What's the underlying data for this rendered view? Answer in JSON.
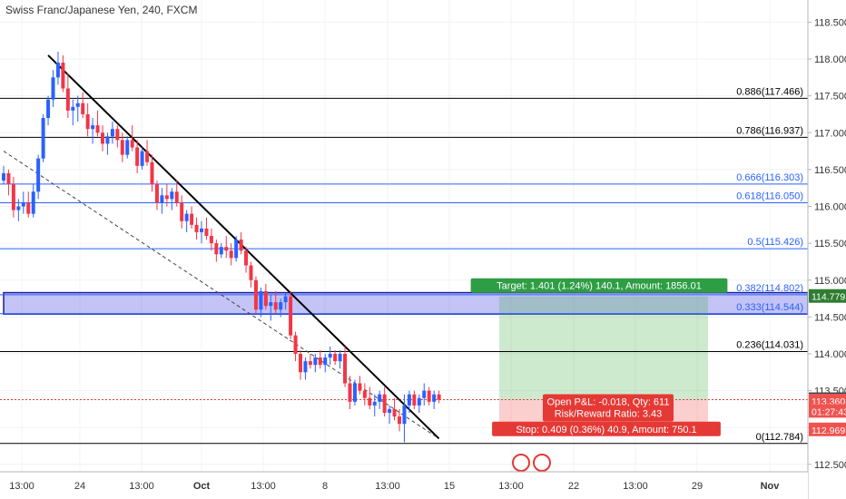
{
  "chart_data": {
    "type": "candlestick",
    "title": "Swiss Franc/Japanese Yen, 240, FXCM",
    "y_axis": {
      "range": [
        112.4,
        118.8
      ],
      "ticks": [
        "118.500",
        "118.000",
        "117.500",
        "117.000",
        "116.500",
        "116.000",
        "115.500",
        "115.000",
        "114.500",
        "114.000",
        "113.500",
        "113.000",
        "112.500"
      ]
    },
    "x_axis": {
      "ticks": [
        "13:00",
        "24",
        "13:00",
        "Oct",
        "13:00",
        "8",
        "13:00",
        "15",
        "13:00",
        "22",
        "13:00",
        "29",
        "Nov"
      ]
    },
    "fib_levels": [
      {
        "label": "0.886(117.466)",
        "value": 117.466,
        "color": "#000000"
      },
      {
        "label": "0.786(116.937)",
        "value": 116.937,
        "color": "#000000"
      },
      {
        "label": "0.666(116.303)",
        "value": 116.303,
        "color": "#2962ff"
      },
      {
        "label": "0.618(116.050)",
        "value": 116.05,
        "color": "#2962ff"
      },
      {
        "label": "0.5(115.426)",
        "value": 115.426,
        "color": "#2962ff"
      },
      {
        "label": "0.382(114.802)",
        "value": 114.802,
        "color": "#2962ff"
      },
      {
        "label": "0.333(114.544)",
        "value": 114.544,
        "color": "#2962ff"
      },
      {
        "label": "0.236(114.031)",
        "value": 114.031,
        "color": "#000000"
      },
      {
        "label": "0(112.784)",
        "value": 112.784,
        "color": "#000000"
      }
    ],
    "price_badges": [
      {
        "text": "114.779",
        "value": 114.779,
        "color": "#2e7d32"
      },
      {
        "text": "113.378",
        "value": 113.378,
        "color": "#37474f"
      },
      {
        "text": "113.360",
        "value": 113.36,
        "color": "#ef5350"
      },
      {
        "text": "01:27:43",
        "value": 113.22,
        "color": "#ef5350"
      },
      {
        "text": "112.969",
        "value": 112.969,
        "color": "#ef5350"
      }
    ],
    "position_tool": {
      "target_label": "Target: 1.401 (1.24%) 140.1, Amount: 1856.01",
      "open_label": "Open P&L: -0.018, Qty: 611",
      "rr_label": "Risk/Reward Ratio: 3.43",
      "stop_label": "Stop: 0.409 (0.36%) 40.9, Amount: 750.1",
      "entry": 113.378,
      "target": 114.779,
      "stop": 112.969
    },
    "trendlines": [
      {
        "style": "solid",
        "from": {
          "bar": 9,
          "price": 118.05
        },
        "to": {
          "bar": 88,
          "price": 112.85
        }
      },
      {
        "style": "dashed",
        "from": {
          "bar": 0,
          "price": 116.75
        },
        "to": {
          "bar": 88,
          "price": 112.85
        }
      }
    ],
    "supply_zone": {
      "top": 114.83,
      "bottom": 114.54
    },
    "current_price": 113.378,
    "bar_count": 100,
    "candles": [
      [
        116.35,
        116.55,
        116.3,
        116.45
      ],
      [
        116.45,
        116.5,
        116.15,
        116.3
      ],
      [
        116.3,
        116.4,
        115.85,
        115.95
      ],
      [
        115.95,
        116.1,
        115.8,
        116.0
      ],
      [
        116.0,
        116.2,
        115.9,
        116.05
      ],
      [
        116.05,
        116.2,
        115.85,
        115.9
      ],
      [
        115.9,
        116.3,
        115.85,
        116.2
      ],
      [
        116.2,
        116.7,
        116.1,
        116.65
      ],
      [
        116.65,
        117.25,
        116.6,
        117.2
      ],
      [
        117.2,
        117.5,
        117.1,
        117.45
      ],
      [
        117.45,
        117.85,
        117.35,
        117.75
      ],
      [
        117.75,
        118.1,
        117.65,
        117.95
      ],
      [
        117.95,
        118.05,
        117.55,
        117.6
      ],
      [
        117.6,
        117.8,
        117.2,
        117.3
      ],
      [
        117.3,
        117.45,
        117.1,
        117.35
      ],
      [
        117.35,
        117.5,
        117.15,
        117.4
      ],
      [
        117.4,
        117.55,
        117.2,
        117.25
      ],
      [
        117.25,
        117.4,
        116.95,
        117.05
      ],
      [
        117.05,
        117.2,
        116.85,
        117.1
      ],
      [
        117.1,
        117.3,
        116.95,
        117.0
      ],
      [
        117.0,
        117.1,
        116.75,
        116.85
      ],
      [
        116.85,
        117.0,
        116.7,
        116.95
      ],
      [
        116.95,
        117.15,
        116.85,
        117.05
      ],
      [
        117.05,
        117.1,
        116.8,
        116.9
      ],
      [
        116.9,
        117.0,
        116.6,
        116.7
      ],
      [
        116.7,
        116.95,
        116.65,
        116.9
      ],
      [
        116.9,
        117.1,
        116.75,
        116.8
      ],
      [
        116.8,
        116.9,
        116.45,
        116.55
      ],
      [
        116.55,
        116.8,
        116.5,
        116.75
      ],
      [
        116.75,
        116.9,
        116.55,
        116.6
      ],
      [
        116.6,
        116.7,
        116.2,
        116.3
      ],
      [
        116.3,
        116.35,
        115.95,
        116.05
      ],
      [
        116.05,
        116.25,
        115.9,
        116.15
      ],
      [
        116.15,
        116.3,
        116.0,
        116.1
      ],
      [
        116.1,
        116.25,
        115.95,
        116.2
      ],
      [
        116.2,
        116.35,
        116.0,
        116.05
      ],
      [
        116.05,
        116.15,
        115.7,
        115.8
      ],
      [
        115.8,
        115.95,
        115.65,
        115.9
      ],
      [
        115.9,
        116.0,
        115.7,
        115.75
      ],
      [
        115.75,
        115.85,
        115.55,
        115.65
      ],
      [
        115.65,
        115.8,
        115.5,
        115.7
      ],
      [
        115.7,
        115.85,
        115.55,
        115.6
      ],
      [
        115.6,
        115.7,
        115.4,
        115.5
      ],
      [
        115.5,
        115.55,
        115.25,
        115.35
      ],
      [
        115.35,
        115.5,
        115.3,
        115.45
      ],
      [
        115.45,
        115.6,
        115.3,
        115.4
      ],
      [
        115.4,
        115.5,
        115.2,
        115.3
      ],
      [
        115.3,
        115.6,
        115.25,
        115.55
      ],
      [
        115.55,
        115.65,
        115.35,
        115.4
      ],
      [
        115.4,
        115.45,
        115.1,
        115.2
      ],
      [
        115.2,
        115.25,
        114.9,
        115.0
      ],
      [
        115.0,
        115.05,
        114.55,
        114.6
      ],
      [
        114.6,
        114.9,
        114.5,
        114.85
      ],
      [
        114.85,
        114.95,
        114.6,
        114.65
      ],
      [
        114.65,
        114.8,
        114.45,
        114.7
      ],
      [
        114.7,
        114.85,
        114.55,
        114.6
      ],
      [
        114.6,
        114.75,
        114.5,
        114.7
      ],
      [
        114.7,
        114.82,
        114.6,
        114.78
      ],
      [
        114.78,
        114.85,
        114.2,
        114.25
      ],
      [
        114.25,
        114.3,
        113.9,
        114.0
      ],
      [
        114.0,
        114.05,
        113.65,
        113.75
      ],
      [
        113.75,
        113.95,
        113.65,
        113.9
      ],
      [
        113.9,
        114.0,
        113.8,
        113.85
      ],
      [
        113.85,
        114.0,
        113.75,
        113.95
      ],
      [
        113.95,
        114.05,
        113.8,
        113.85
      ],
      [
        113.85,
        114.0,
        113.75,
        113.95
      ],
      [
        113.95,
        114.1,
        113.85,
        114.0
      ],
      [
        114.0,
        114.05,
        113.85,
        113.9
      ],
      [
        113.9,
        114.05,
        113.8,
        114.0
      ],
      [
        114.0,
        114.1,
        113.55,
        113.6
      ],
      [
        113.6,
        113.7,
        113.25,
        113.35
      ],
      [
        113.35,
        113.65,
        113.3,
        113.6
      ],
      [
        113.6,
        113.7,
        113.45,
        113.5
      ],
      [
        113.5,
        113.6,
        113.3,
        113.4
      ],
      [
        113.4,
        113.55,
        113.25,
        113.3
      ],
      [
        113.3,
        113.45,
        113.15,
        113.35
      ],
      [
        113.35,
        113.5,
        113.25,
        113.45
      ],
      [
        113.45,
        113.55,
        113.15,
        113.2
      ],
      [
        113.2,
        113.3,
        113.05,
        113.25
      ],
      [
        113.25,
        113.4,
        113.1,
        113.15
      ],
      [
        113.15,
        113.25,
        112.95,
        113.05
      ],
      [
        113.05,
        113.45,
        112.8,
        113.3
      ],
      [
        113.3,
        113.5,
        113.2,
        113.45
      ],
      [
        113.45,
        113.5,
        113.25,
        113.3
      ],
      [
        113.3,
        113.45,
        113.2,
        113.4
      ],
      [
        113.4,
        113.6,
        113.3,
        113.5
      ],
      [
        113.5,
        113.55,
        113.3,
        113.35
      ],
      [
        113.35,
        113.5,
        113.25,
        113.45
      ],
      [
        113.45,
        113.5,
        113.33,
        113.378
      ]
    ]
  }
}
